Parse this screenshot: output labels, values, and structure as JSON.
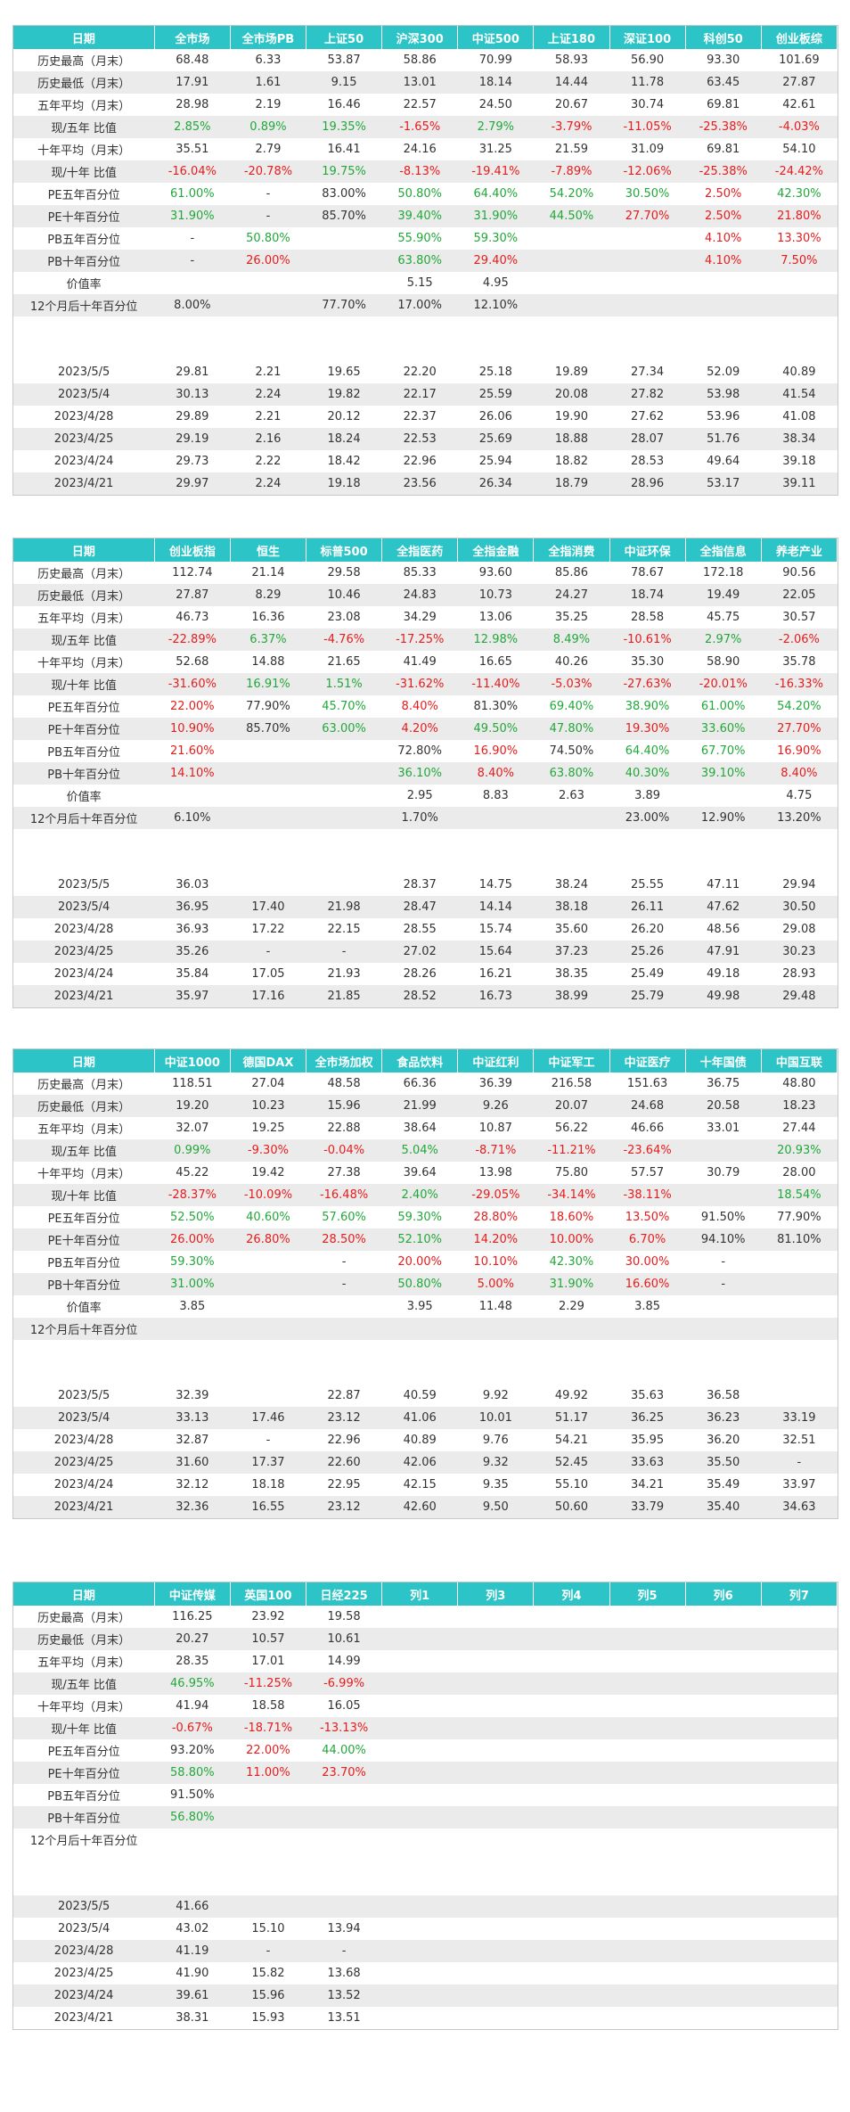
{
  "tables": [
    {
      "headers": [
        "日期",
        "全市场",
        "全市场PB",
        "上证50",
        "沪深300",
        "中证500",
        "上证180",
        "深证100",
        "科创50",
        "创业板综"
      ],
      "rows": [
        [
          "历史最高（月末）",
          "68.48",
          "6.33",
          "53.87",
          "58.86",
          "70.99",
          "58.93",
          "56.90",
          "93.30",
          "101.69"
        ],
        [
          "历史最低（月末）",
          "17.91",
          "1.61",
          "9.15",
          "13.01",
          "18.14",
          "14.44",
          "11.78",
          "63.45",
          "27.87"
        ],
        [
          "五年平均（月末）",
          "28.98",
          "2.19",
          "16.46",
          "22.57",
          "24.50",
          "20.67",
          "30.74",
          "69.81",
          "42.61"
        ],
        [
          "现/五年 比值",
          "2.85%",
          "0.89%",
          "19.35%",
          "-1.65%",
          "2.79%",
          "-3.79%",
          "-11.05%",
          "-25.38%",
          "-4.03%"
        ],
        [
          "十年平均（月末）",
          "35.51",
          "2.79",
          "16.41",
          "24.16",
          "31.25",
          "21.59",
          "31.09",
          "69.81",
          "54.10"
        ],
        [
          "现/十年 比值",
          "-16.04%",
          "-20.78%",
          "19.75%",
          "-8.13%",
          "-19.41%",
          "-7.89%",
          "-12.06%",
          "-25.38%",
          "-24.42%"
        ],
        [
          "PE五年百分位",
          "61.00%",
          "-",
          "83.00%",
          "50.80%",
          "64.40%",
          "54.20%",
          "30.50%",
          "2.50%",
          "42.30%"
        ],
        [
          "PE十年百分位",
          "31.90%",
          "-",
          "85.70%",
          "39.40%",
          "31.90%",
          "44.50%",
          "27.70%",
          "2.50%",
          "21.80%"
        ],
        [
          "PB五年百分位",
          "-",
          "50.80%",
          "",
          "55.90%",
          "59.30%",
          "",
          "",
          "4.10%",
          "13.30%"
        ],
        [
          "PB十年百分位",
          "-",
          "26.00%",
          "",
          "63.80%",
          "29.40%",
          "",
          "",
          "4.10%",
          "7.50%"
        ],
        [
          "价值率",
          "",
          "",
          "",
          "5.15",
          "4.95",
          "",
          "",
          "",
          ""
        ],
        [
          "12个月后十年百分位",
          "8.00%",
          "",
          "77.70%",
          "17.00%",
          "12.10%",
          "",
          "",
          "",
          ""
        ],
        [
          "",
          "",
          "",
          "",
          "",
          "",
          "",
          "",
          "",
          ""
        ],
        [
          "",
          "",
          "",
          "",
          "",
          "",
          "",
          "",
          "",
          ""
        ],
        [
          "2023/5/5",
          "29.81",
          "2.21",
          "19.65",
          "22.20",
          "25.18",
          "19.89",
          "27.34",
          "52.09",
          "40.89"
        ],
        [
          "2023/5/4",
          "30.13",
          "2.24",
          "19.82",
          "22.17",
          "25.59",
          "20.08",
          "27.82",
          "53.98",
          "41.54"
        ],
        [
          "2023/4/28",
          "29.89",
          "2.21",
          "20.12",
          "22.37",
          "26.06",
          "19.90",
          "27.62",
          "53.96",
          "41.08"
        ],
        [
          "2023/4/25",
          "29.19",
          "2.16",
          "18.24",
          "22.53",
          "25.69",
          "18.88",
          "28.07",
          "51.76",
          "38.34"
        ],
        [
          "2023/4/24",
          "29.73",
          "2.22",
          "18.42",
          "22.96",
          "25.94",
          "18.82",
          "28.53",
          "49.64",
          "39.18"
        ],
        [
          "2023/4/21",
          "29.97",
          "2.24",
          "19.18",
          "23.56",
          "26.34",
          "18.79",
          "28.96",
          "53.17",
          "39.11"
        ]
      ]
    },
    {
      "headers": [
        "日期",
        "创业板指",
        "恒生",
        "标普500",
        "全指医药",
        "全指金融",
        "全指消费",
        "中证环保",
        "全指信息",
        "养老产业"
      ],
      "rows": [
        [
          "历史最高（月末）",
          "112.74",
          "21.14",
          "29.58",
          "85.33",
          "93.60",
          "85.86",
          "78.67",
          "172.18",
          "90.56"
        ],
        [
          "历史最低（月末）",
          "27.87",
          "8.29",
          "10.46",
          "24.83",
          "10.73",
          "24.27",
          "18.74",
          "19.49",
          "22.05"
        ],
        [
          "五年平均（月末）",
          "46.73",
          "16.36",
          "23.08",
          "34.29",
          "13.06",
          "35.25",
          "28.58",
          "45.75",
          "30.57"
        ],
        [
          "现/五年 比值",
          "-22.89%",
          "6.37%",
          "-4.76%",
          "-17.25%",
          "12.98%",
          "8.49%",
          "-10.61%",
          "2.97%",
          "-2.06%"
        ],
        [
          "十年平均（月末）",
          "52.68",
          "14.88",
          "21.65",
          "41.49",
          "16.65",
          "40.26",
          "35.30",
          "58.90",
          "35.78"
        ],
        [
          "现/十年 比值",
          "-31.60%",
          "16.91%",
          "1.51%",
          "-31.62%",
          "-11.40%",
          "-5.03%",
          "-27.63%",
          "-20.01%",
          "-16.33%"
        ],
        [
          "PE五年百分位",
          "22.00%",
          "77.90%",
          "45.70%",
          "8.40%",
          "81.30%",
          "69.40%",
          "38.90%",
          "61.00%",
          "54.20%"
        ],
        [
          "PE十年百分位",
          "10.90%",
          "85.70%",
          "63.00%",
          "4.20%",
          "49.50%",
          "47.80%",
          "19.30%",
          "33.60%",
          "27.70%"
        ],
        [
          "PB五年百分位",
          "21.60%",
          "",
          "",
          "72.80%",
          "16.90%",
          "74.50%",
          "64.40%",
          "67.70%",
          "16.90%"
        ],
        [
          "PB十年百分位",
          "14.10%",
          "",
          "",
          "36.10%",
          "8.40%",
          "63.80%",
          "40.30%",
          "39.10%",
          "8.40%"
        ],
        [
          "价值率",
          "",
          "",
          "",
          "2.95",
          "8.83",
          "2.63",
          "3.89",
          "",
          "4.75"
        ],
        [
          "12个月后十年百分位",
          "6.10%",
          "",
          "",
          "1.70%",
          "",
          "",
          "23.00%",
          "12.90%",
          "13.20%"
        ],
        [
          "",
          "",
          "",
          "",
          "",
          "",
          "",
          "",
          "",
          ""
        ],
        [
          "",
          "",
          "",
          "",
          "",
          "",
          "",
          "",
          "",
          ""
        ],
        [
          "2023/5/5",
          "36.03",
          "",
          "",
          "28.37",
          "14.75",
          "38.24",
          "25.55",
          "47.11",
          "29.94"
        ],
        [
          "2023/5/4",
          "36.95",
          "17.40",
          "21.98",
          "28.47",
          "14.14",
          "38.18",
          "26.11",
          "47.62",
          "30.50"
        ],
        [
          "2023/4/28",
          "36.93",
          "17.22",
          "22.15",
          "28.55",
          "15.74",
          "35.60",
          "26.20",
          "48.56",
          "29.08"
        ],
        [
          "2023/4/25",
          "35.26",
          "-",
          "-",
          "27.02",
          "15.64",
          "37.23",
          "25.26",
          "47.91",
          "30.23"
        ],
        [
          "2023/4/24",
          "35.84",
          "17.05",
          "21.93",
          "28.26",
          "16.21",
          "38.35",
          "25.49",
          "49.18",
          "28.93"
        ],
        [
          "2023/4/21",
          "35.97",
          "17.16",
          "21.85",
          "28.52",
          "16.73",
          "38.99",
          "25.79",
          "49.98",
          "29.48"
        ]
      ]
    },
    {
      "headers": [
        "日期",
        "中证1000",
        "德国DAX",
        "全市场加权",
        "食品饮料",
        "中证红利",
        "中证军工",
        "中证医疗",
        "十年国债",
        "中国互联"
      ],
      "rows": [
        [
          "历史最高（月末）",
          "118.51",
          "27.04",
          "48.58",
          "66.36",
          "36.39",
          "216.58",
          "151.63",
          "36.75",
          "48.80"
        ],
        [
          "历史最低（月末）",
          "19.20",
          "10.23",
          "15.96",
          "21.99",
          "9.26",
          "20.07",
          "24.68",
          "20.58",
          "18.23"
        ],
        [
          "五年平均（月末）",
          "32.07",
          "19.25",
          "22.88",
          "38.64",
          "10.87",
          "56.22",
          "46.66",
          "33.01",
          "27.44"
        ],
        [
          "现/五年 比值",
          "0.99%",
          "-9.30%",
          "-0.04%",
          "5.04%",
          "-8.71%",
          "-11.21%",
          "-23.64%",
          "",
          "20.93%"
        ],
        [
          "十年平均（月末）",
          "45.22",
          "19.42",
          "27.38",
          "39.64",
          "13.98",
          "75.80",
          "57.57",
          "30.79",
          "28.00"
        ],
        [
          "现/十年 比值",
          "-28.37%",
          "-10.09%",
          "-16.48%",
          "2.40%",
          "-29.05%",
          "-34.14%",
          "-38.11%",
          "",
          "18.54%"
        ],
        [
          "PE五年百分位",
          "52.50%",
          "40.60%",
          "57.60%",
          "59.30%",
          "28.80%",
          "18.60%",
          "13.50%",
          "91.50%",
          "77.90%"
        ],
        [
          "PE十年百分位",
          "26.00%",
          "26.80%",
          "28.50%",
          "52.10%",
          "14.20%",
          "10.00%",
          "6.70%",
          "94.10%",
          "81.10%"
        ],
        [
          "PB五年百分位",
          "59.30%",
          "",
          "-",
          "20.00%",
          "10.10%",
          "42.30%",
          "30.00%",
          "-",
          ""
        ],
        [
          "PB十年百分位",
          "31.00%",
          "",
          "-",
          "50.80%",
          "5.00%",
          "31.90%",
          "16.60%",
          "-",
          ""
        ],
        [
          "价值率",
          "3.85",
          "",
          "",
          "3.95",
          "11.48",
          "2.29",
          "3.85",
          "",
          ""
        ],
        [
          "12个月后十年百分位",
          "",
          "",
          "",
          "",
          "",
          "",
          "",
          "",
          ""
        ],
        [
          "",
          "",
          "",
          "",
          "",
          "",
          "",
          "",
          "",
          ""
        ],
        [
          "",
          "",
          "",
          "",
          "",
          "",
          "",
          "",
          "",
          ""
        ],
        [
          "2023/5/5",
          "32.39",
          "",
          "22.87",
          "40.59",
          "9.92",
          "49.92",
          "35.63",
          "36.58",
          ""
        ],
        [
          "2023/5/4",
          "33.13",
          "17.46",
          "23.12",
          "41.06",
          "10.01",
          "51.17",
          "36.25",
          "36.23",
          "33.19"
        ],
        [
          "2023/4/28",
          "32.87",
          "-",
          "22.96",
          "40.89",
          "9.76",
          "54.21",
          "35.95",
          "36.20",
          "32.51"
        ],
        [
          "2023/4/25",
          "31.60",
          "17.37",
          "22.60",
          "42.06",
          "9.32",
          "52.45",
          "33.63",
          "35.50",
          "-"
        ],
        [
          "2023/4/24",
          "32.12",
          "18.18",
          "22.95",
          "42.15",
          "9.35",
          "55.10",
          "34.21",
          "35.49",
          "33.97"
        ],
        [
          "2023/4/21",
          "32.36",
          "16.55",
          "23.12",
          "42.60",
          "9.50",
          "50.60",
          "33.79",
          "35.40",
          "34.63"
        ]
      ]
    },
    {
      "headers": [
        "日期",
        "中证传媒",
        "英国100",
        "日经225",
        "列1",
        "列3",
        "列4",
        "列5",
        "列6",
        "列7"
      ],
      "rows": [
        [
          "历史最高（月末）",
          "116.25",
          "23.92",
          "19.58",
          "",
          "",
          "",
          "",
          "",
          ""
        ],
        [
          "历史最低（月末）",
          "20.27",
          "10.57",
          "10.61",
          "",
          "",
          "",
          "",
          "",
          ""
        ],
        [
          "五年平均（月末）",
          "28.35",
          "17.01",
          "14.99",
          "",
          "",
          "",
          "",
          "",
          ""
        ],
        [
          "现/五年 比值",
          "46.95%",
          "-11.25%",
          "-6.99%",
          "",
          "",
          "",
          "",
          "",
          ""
        ],
        [
          "十年平均（月末）",
          "41.94",
          "18.58",
          "16.05",
          "",
          "",
          "",
          "",
          "",
          ""
        ],
        [
          "现/十年 比值",
          "-0.67%",
          "-18.71%",
          "-13.13%",
          "",
          "",
          "",
          "",
          "",
          ""
        ],
        [
          "PE五年百分位",
          "93.20%",
          "22.00%",
          "44.00%",
          "",
          "",
          "",
          "",
          "",
          ""
        ],
        [
          "PE十年百分位",
          "58.80%",
          "11.00%",
          "23.70%",
          "",
          "",
          "",
          "",
          "",
          ""
        ],
        [
          "PB五年百分位",
          "91.50%",
          "",
          "",
          "",
          "",
          "",
          "",
          "",
          ""
        ],
        [
          "PB十年百分位",
          "56.80%",
          "",
          "",
          "",
          "",
          "",
          "",
          "",
          ""
        ],
        [
          "12个月后十年百分位",
          "",
          "",
          "",
          "",
          "",
          "",
          "",
          "",
          ""
        ],
        [
          "",
          "",
          "",
          "",
          "",
          "",
          "",
          "",
          "",
          ""
        ],
        [
          "",
          "",
          "",
          "",
          "",
          "",
          "",
          "",
          "",
          ""
        ],
        [
          "2023/5/5",
          "41.66",
          "",
          "",
          "",
          "",
          "",
          "",
          "",
          ""
        ],
        [
          "2023/5/4",
          "43.02",
          "15.10",
          "13.94",
          "",
          "",
          "",
          "",
          "",
          ""
        ],
        [
          "2023/4/28",
          "41.19",
          "-",
          "-",
          "",
          "",
          "",
          "",
          "",
          ""
        ],
        [
          "2023/4/25",
          "41.90",
          "15.82",
          "13.68",
          "",
          "",
          "",
          "",
          "",
          ""
        ],
        [
          "2023/4/24",
          "39.61",
          "15.96",
          "13.52",
          "",
          "",
          "",
          "",
          "",
          ""
        ],
        [
          "2023/4/21",
          "38.31",
          "15.93",
          "13.51",
          "",
          "",
          "",
          "",
          "",
          ""
        ]
      ]
    }
  ],
  "colors": {
    "header_bg": "#2cc4c6",
    "header_text": "#ffffff",
    "positive": "#22a83a",
    "negative": "#e81c1c",
    "row_alt": "#ebebeb",
    "highlight_green": "#d9f0d9",
    "highlight_red": "#f7d9d9"
  }
}
